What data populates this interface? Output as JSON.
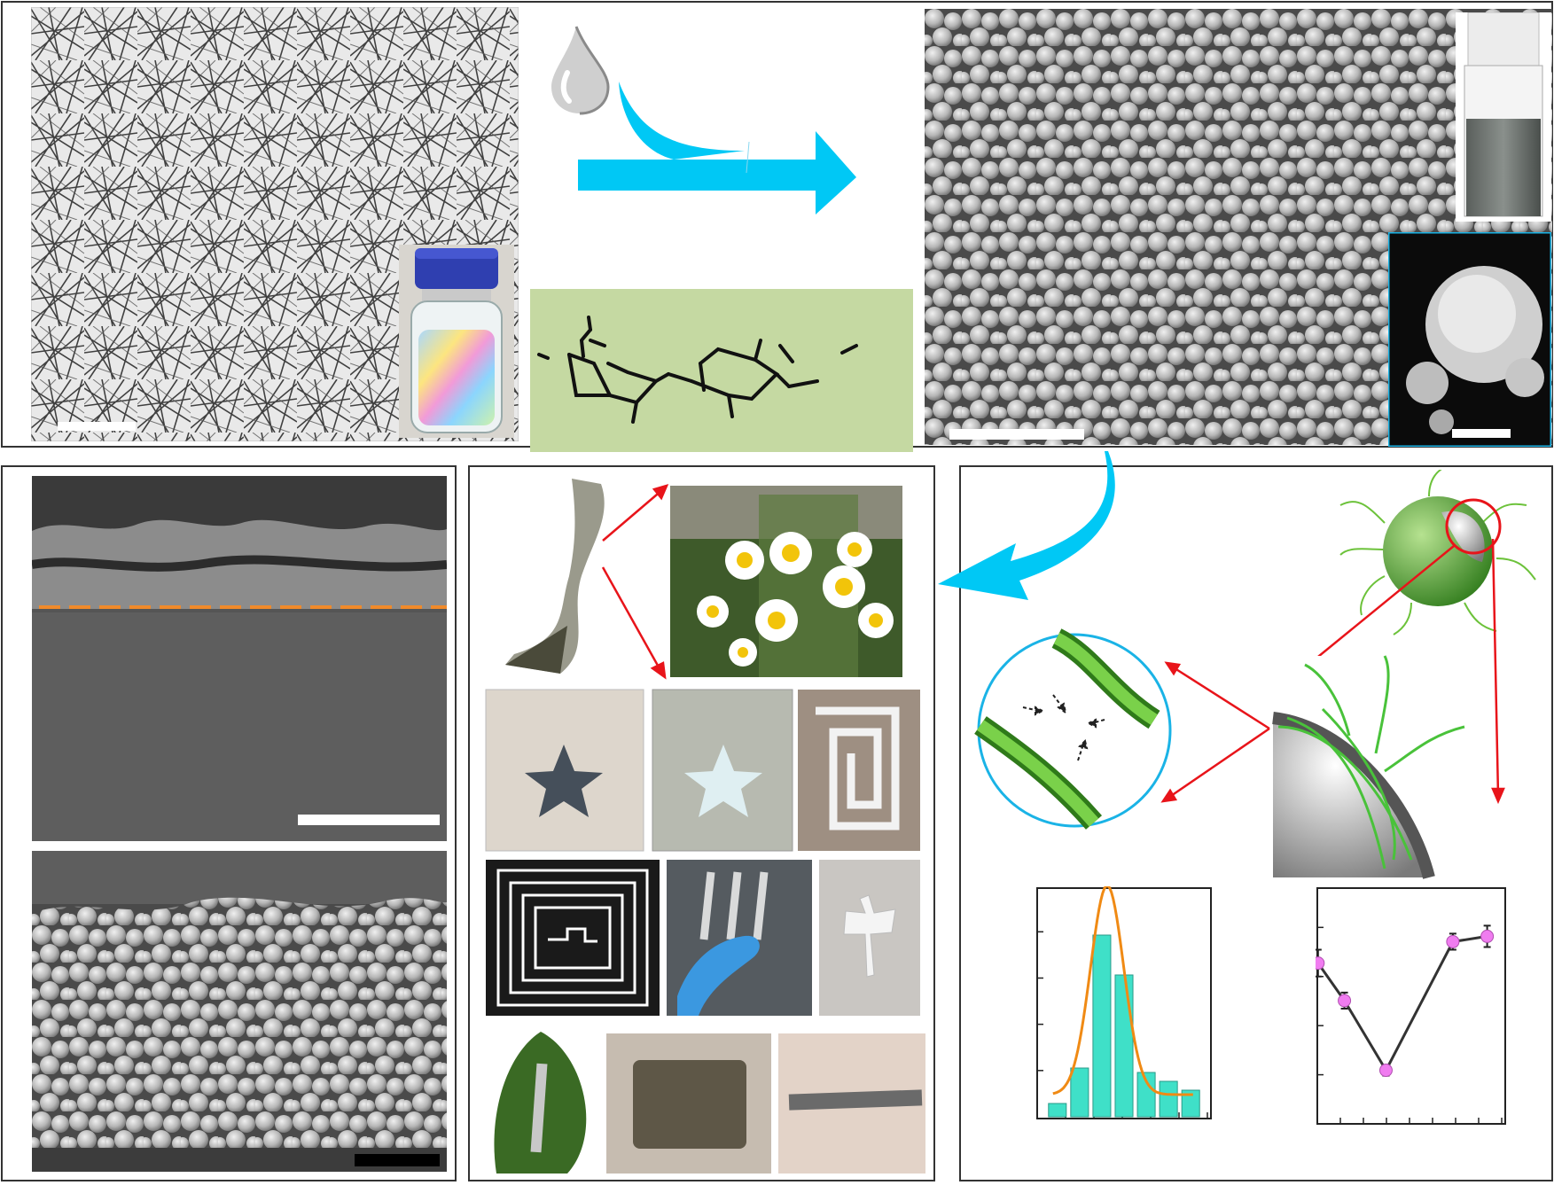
{
  "figure": {
    "colors": {
      "process_arrow": "#00c8f5",
      "link_arrow": "#e8141a",
      "green_fiber": "#6cc23a",
      "molecule_box": "#c5d9a2",
      "bar_fill": "#3fe0c8",
      "fit_curve": "#f08a14",
      "marker": "#f07cf0",
      "dash_line": "#f08a2a"
    },
    "icons": [
      "water-drop-icon",
      "process-arrow-icon",
      "flow-arrow-icon",
      "magnifier-circle-icon"
    ]
  },
  "chart_data": [
    {
      "type": "bar",
      "values": [
        0.3,
        1.1,
        4.1,
        3.2,
        1.0,
        0.8,
        0.6
      ],
      "fit": true,
      "grid": false,
      "xlabel": "",
      "ylabel": ""
    },
    {
      "type": "line",
      "x": [
        1,
        2,
        3,
        4,
        5
      ],
      "values": [
        3.0,
        2.3,
        1.0,
        3.4,
        3.5
      ],
      "errors": [
        0.25,
        0.15,
        0.1,
        0.15,
        0.2
      ],
      "grid": false,
      "xlabel": "",
      "ylabel": ""
    }
  ]
}
